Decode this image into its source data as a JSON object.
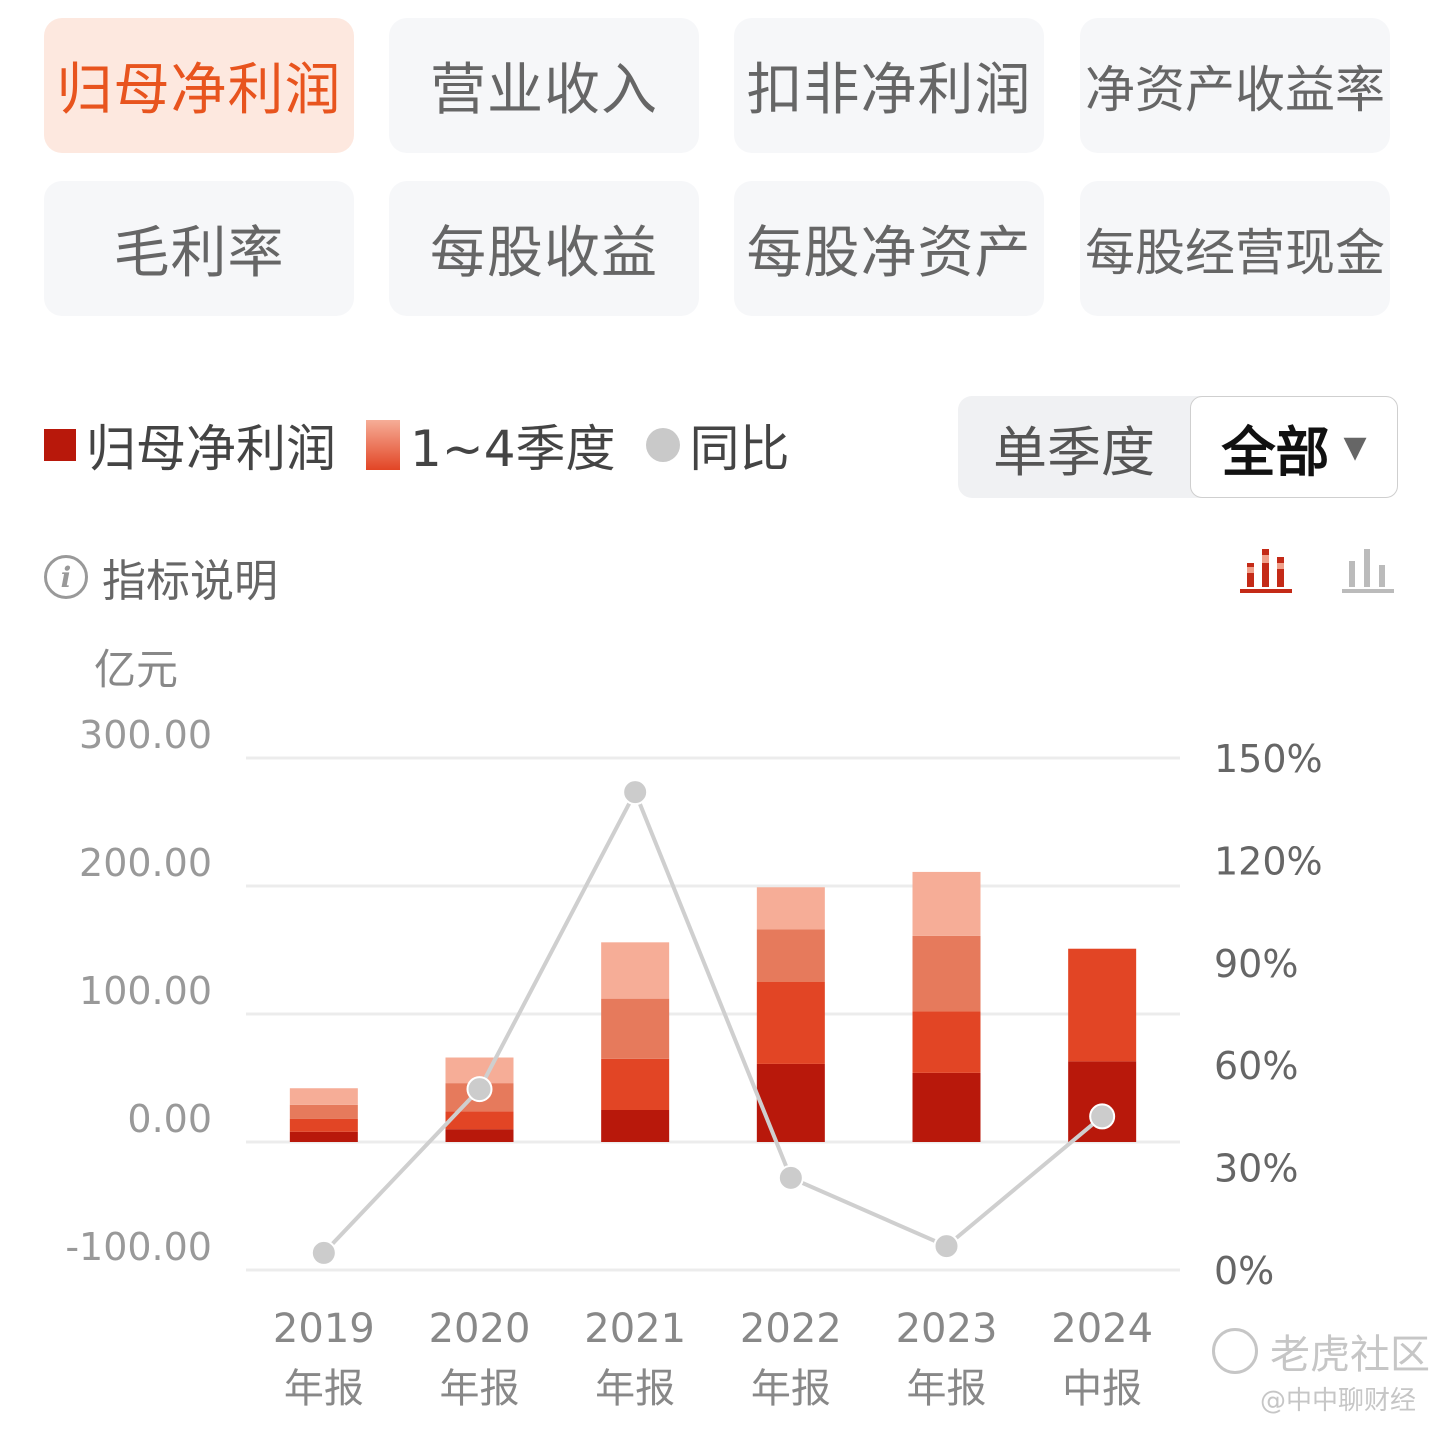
{
  "tabs": [
    {
      "label": "归母净利润",
      "active": true
    },
    {
      "label": "营业收入",
      "active": false
    },
    {
      "label": "扣非净利润",
      "active": false
    },
    {
      "label": "净资产收益率",
      "active": false
    },
    {
      "label": "毛利率",
      "active": false
    },
    {
      "label": "每股收益",
      "active": false
    },
    {
      "label": "每股净资产",
      "active": false
    },
    {
      "label": "每股经营现金",
      "active": false
    }
  ],
  "legend": {
    "net": "归母净利润",
    "quarters": "1~4季度",
    "yoy": "同比"
  },
  "toggle": {
    "single": "单季度",
    "all": "全部",
    "arrow": "▼"
  },
  "info": {
    "icon": "i",
    "label": "指标说明"
  },
  "icons": {
    "stacked": "stacked-bar-chart-icon",
    "plain": "bar-chart-icon"
  },
  "colors": {
    "q1": "#b8180b",
    "q2": "#e24525",
    "q3": "#e67a5c",
    "q4": "#f6ad97",
    "line": "#cfcfcf",
    "active": "#e8541e"
  },
  "watermark": {
    "brand": "老虎社区",
    "author": "@中中聊财经"
  },
  "chart_data": {
    "type": "bar",
    "stacked": true,
    "ylabel": "亿元",
    "ylim": [
      -100,
      300
    ],
    "y_ticks": [
      "300.00",
      "200.00",
      "100.00",
      "0.00",
      "-100.00"
    ],
    "y_tick_values": [
      300,
      200,
      100,
      0,
      -100
    ],
    "y2lim": [
      0,
      150
    ],
    "y2_ticks": [
      "150%",
      "120%",
      "90%",
      "60%",
      "30%",
      "0%"
    ],
    "y2_tick_values": [
      150,
      120,
      90,
      60,
      30,
      0
    ],
    "categories": [
      [
        "2019",
        "年报"
      ],
      [
        "2020",
        "年报"
      ],
      [
        "2021",
        "年报"
      ],
      [
        "2022",
        "年报"
      ],
      [
        "2023",
        "年报"
      ],
      [
        "2024",
        "中报"
      ]
    ],
    "series": [
      {
        "values": [
          8,
          10,
          25,
          61,
          54,
          63
        ]
      },
      {
        "values": [
          10,
          14,
          40,
          64,
          48,
          88
        ]
      },
      {
        "values": [
          11,
          22,
          47,
          41,
          59,
          0
        ]
      },
      {
        "values": [
          13,
          20,
          44,
          33,
          50,
          0
        ]
      }
    ],
    "yoy": {
      "name": "同比",
      "values": [
        5,
        53,
        140,
        27,
        7,
        45
      ]
    }
  }
}
